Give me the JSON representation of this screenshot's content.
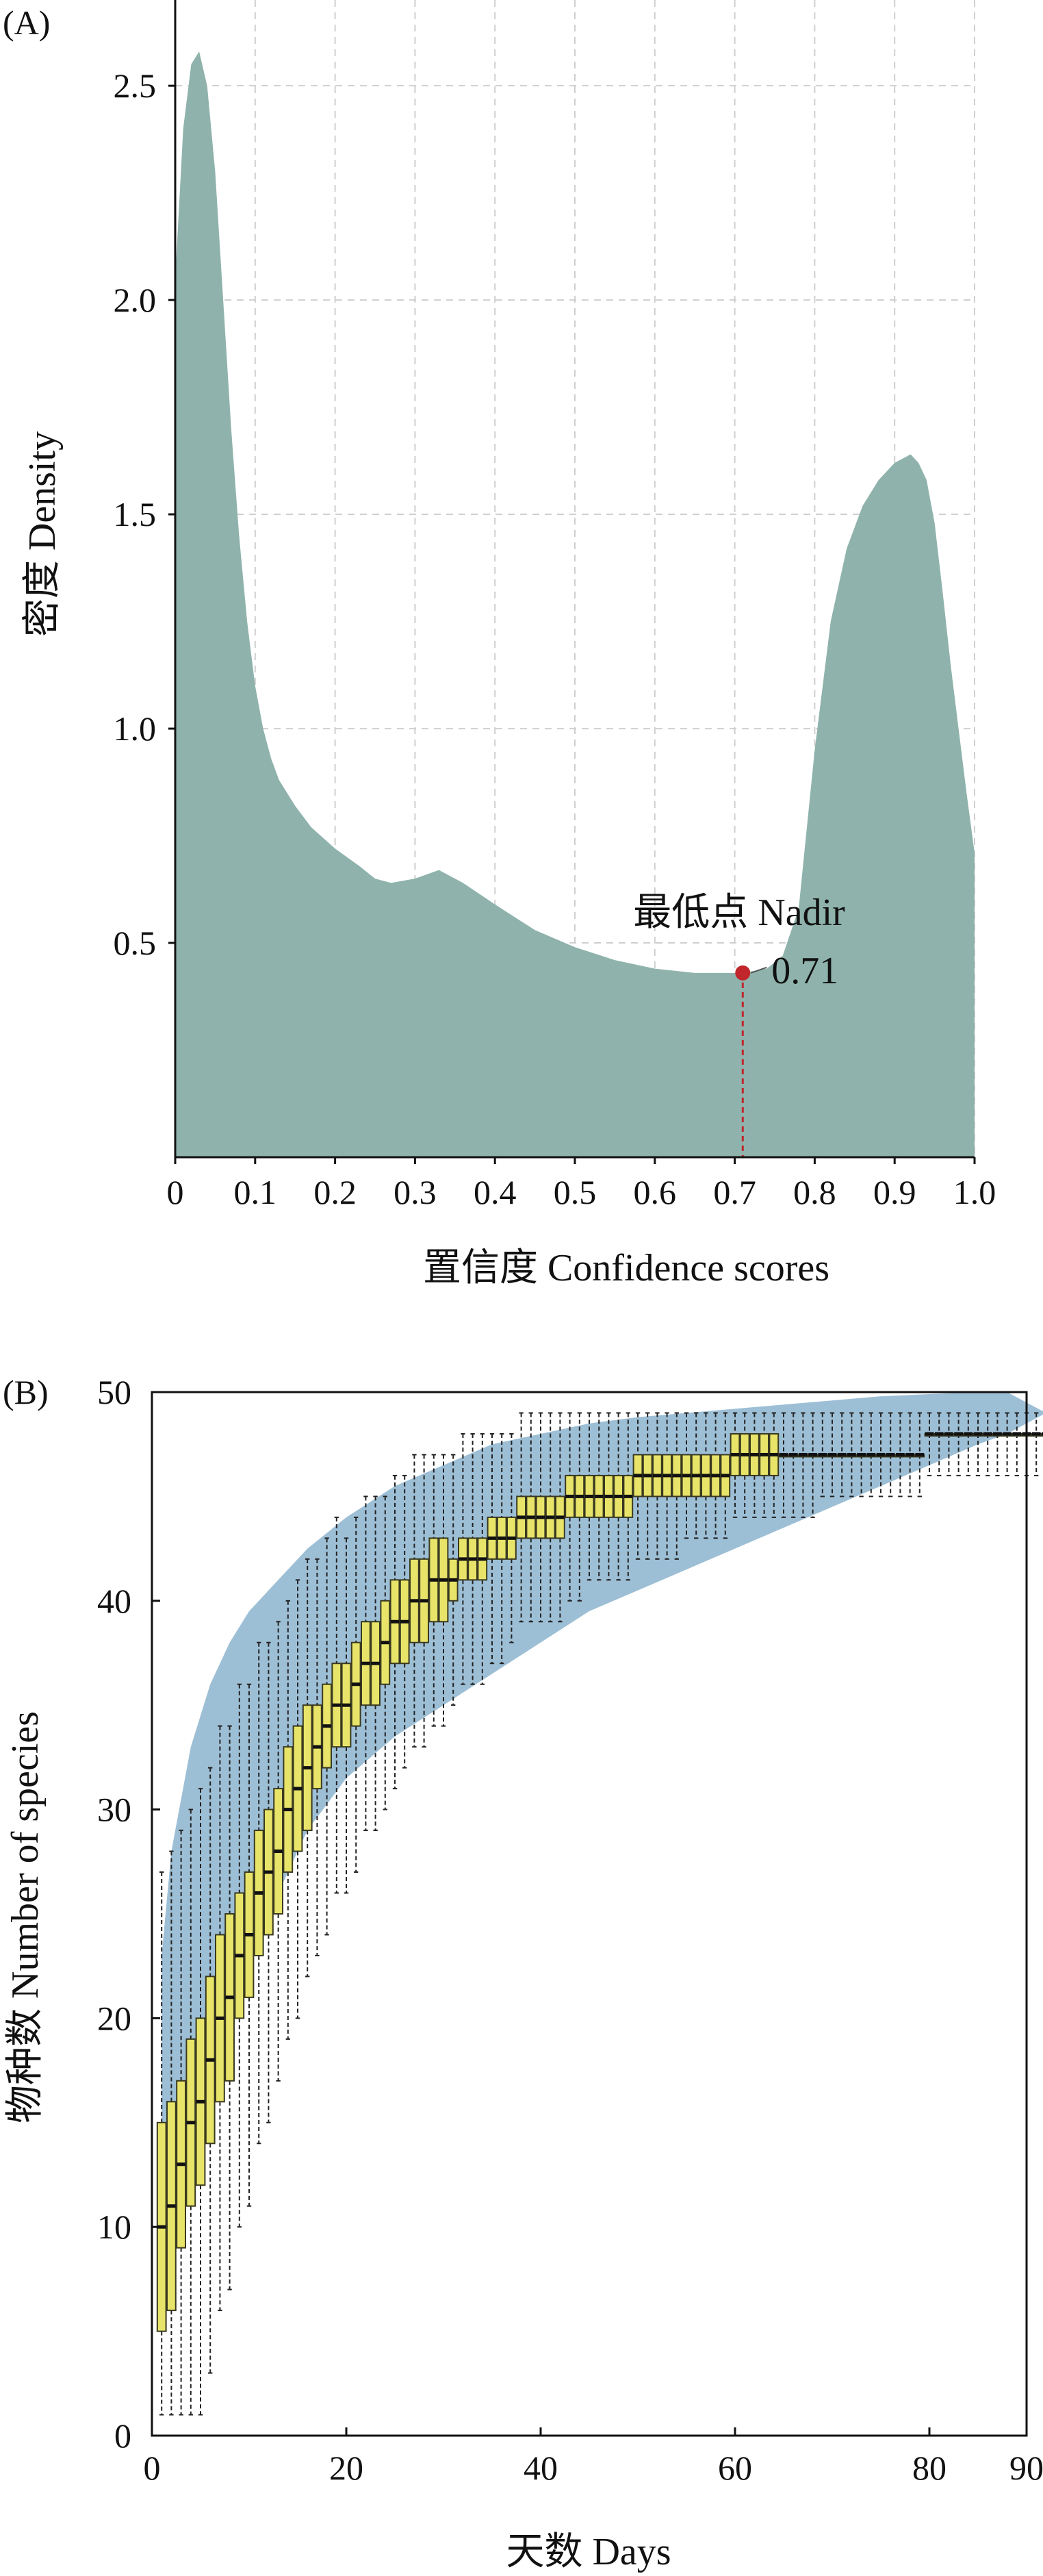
{
  "colors": {
    "density_fill": "#8fb3ac",
    "nadir_point": "#c0262c",
    "band_fill": "#9dbfd6",
    "box_fill": "#e8e46a",
    "box_stroke": "#3a3a20"
  },
  "chart_data": [
    {
      "type": "area",
      "panel_label": "(A)",
      "xlabel": "置信度 Confidence scores",
      "ylabel": "密度 Density",
      "xlim": [
        0,
        1
      ],
      "ylim": [
        0,
        2.7
      ],
      "x_ticks": [
        0,
        0.1,
        0.2,
        0.3,
        0.4,
        0.5,
        0.6,
        0.7,
        0.8,
        0.9,
        1.0
      ],
      "x_tick_labels": [
        "0",
        "0.1",
        "0.2",
        "0.3",
        "0.4",
        "0.5",
        "0.6",
        "0.7",
        "0.8",
        "0.9",
        "1.0"
      ],
      "y_ticks": [
        0.5,
        1.0,
        1.5,
        2.0,
        2.5
      ],
      "y_tick_labels": [
        "0.5",
        "1.0",
        "1.5",
        "2.0",
        "2.5"
      ],
      "grid": true,
      "x": [
        0,
        0.01,
        0.02,
        0.03,
        0.04,
        0.05,
        0.06,
        0.07,
        0.08,
        0.09,
        0.1,
        0.11,
        0.12,
        0.13,
        0.15,
        0.17,
        0.2,
        0.23,
        0.25,
        0.27,
        0.3,
        0.33,
        0.36,
        0.4,
        0.45,
        0.5,
        0.55,
        0.6,
        0.65,
        0.68,
        0.71,
        0.74,
        0.76,
        0.78,
        0.8,
        0.82,
        0.84,
        0.86,
        0.88,
        0.9,
        0.91,
        0.92,
        0.93,
        0.94,
        0.95,
        0.96,
        0.97,
        0.98,
        0.99,
        1.0
      ],
      "y": [
        2.05,
        2.4,
        2.55,
        2.58,
        2.5,
        2.3,
        2.0,
        1.7,
        1.45,
        1.25,
        1.1,
        1.0,
        0.93,
        0.88,
        0.82,
        0.77,
        0.72,
        0.68,
        0.65,
        0.64,
        0.65,
        0.67,
        0.64,
        0.59,
        0.53,
        0.49,
        0.46,
        0.44,
        0.43,
        0.43,
        0.43,
        0.44,
        0.47,
        0.58,
        0.95,
        1.25,
        1.42,
        1.52,
        1.58,
        1.62,
        1.63,
        1.64,
        1.62,
        1.58,
        1.48,
        1.32,
        1.15,
        1.0,
        0.85,
        0.71
      ],
      "annotations": [
        {
          "label": "最低点 Nadir",
          "value_label": "0.71",
          "x": 0.71,
          "y": 0.43
        }
      ]
    },
    {
      "type": "box",
      "panel_label": "(B)",
      "xlabel": "天数 Days",
      "ylabel": "物种数 Number of species",
      "xlim": [
        0,
        90
      ],
      "ylim": [
        0,
        50
      ],
      "x_ticks": [
        0,
        20,
        40,
        60,
        80,
        90
      ],
      "x_tick_labels": [
        "0",
        "20",
        "40",
        "60",
        "80",
        "90"
      ],
      "y_ticks": [
        0,
        10,
        20,
        30,
        40,
        50
      ],
      "y_tick_labels": [
        "0",
        "10",
        "20",
        "30",
        "40",
        "50"
      ],
      "days": [
        1,
        2,
        3,
        4,
        5,
        6,
        7,
        8,
        9,
        10,
        11,
        12,
        13,
        14,
        15,
        16,
        17,
        18,
        19,
        20,
        21,
        22,
        23,
        24,
        25,
        26,
        27,
        28,
        29,
        30,
        31,
        32,
        33,
        34,
        35,
        36,
        37,
        38,
        39,
        40,
        41,
        42,
        43,
        44,
        45,
        46,
        47,
        48,
        49,
        50,
        51,
        52,
        53,
        54,
        55,
        56,
        57,
        58,
        59,
        60,
        61,
        62,
        63,
        64,
        65,
        66,
        67,
        68,
        69,
        70,
        71,
        72,
        73,
        74,
        75,
        76,
        77,
        78,
        79,
        80,
        81,
        82,
        83,
        84,
        85,
        86,
        87,
        88,
        89,
        90,
        91,
        92
      ],
      "band_x": [
        1,
        2,
        4,
        6,
        8,
        10,
        13,
        16,
        20,
        25,
        30,
        35,
        40,
        45,
        50,
        55,
        60,
        65,
        70,
        75,
        80,
        85,
        88,
        90,
        92
      ],
      "band_upper": [
        23,
        28,
        33,
        36,
        38,
        39.5,
        41,
        42.5,
        44,
        45.5,
        46.5,
        47.5,
        48,
        48.5,
        48.8,
        49,
        49.2,
        49.4,
        49.6,
        49.8,
        49.9,
        50,
        50,
        49.5,
        49
      ],
      "band_lower": [
        6,
        9,
        13,
        17,
        20,
        23,
        26,
        29,
        31.5,
        33.5,
        35,
        36.5,
        38,
        39.5,
        40.5,
        41.5,
        42.5,
        43.5,
        44.5,
        45.5,
        46.5,
        47.5,
        48,
        48.5,
        49
      ]
    }
  ]
}
